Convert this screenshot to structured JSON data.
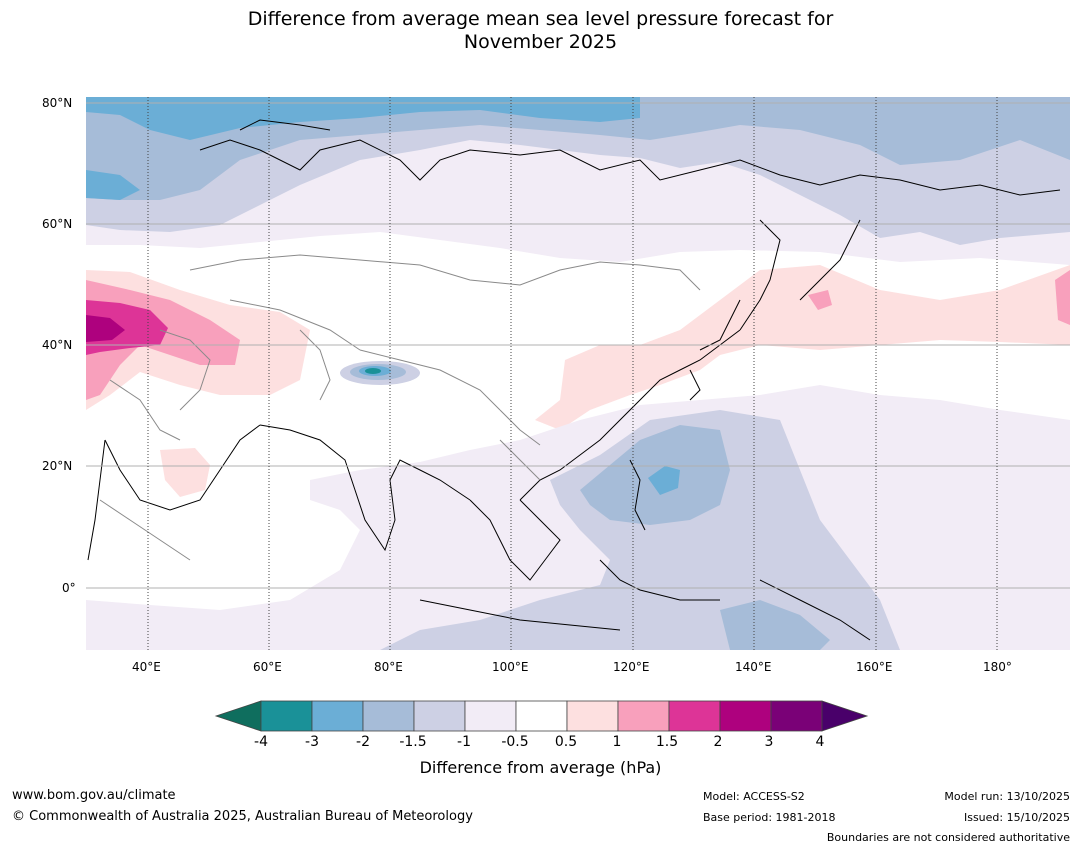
{
  "title_line1": "Difference from average mean sea level pressure forecast for",
  "title_line2": "November 2025",
  "lat_labels": [
    "80°N",
    "60°N",
    "40°N",
    "20°N",
    "0°"
  ],
  "lon_labels": [
    "40°E",
    "60°E",
    "80°E",
    "100°E",
    "120°E",
    "140°E",
    "160°E",
    "180°"
  ],
  "colorbar": {
    "ticks": [
      "-4",
      "-3",
      "-2",
      "-1.5",
      "-1",
      "-0.5",
      "0.5",
      "1",
      "1.5",
      "2",
      "3",
      "4"
    ],
    "colors": [
      "#1a9198",
      "#6baed6",
      "#a6bcd8",
      "#cdd0e4",
      "#f2ecf6",
      "#ffffff",
      "#fde0e0",
      "#f8a0bc",
      "#dd3497",
      "#ae017e",
      "#7a0177"
    ],
    "under_color": "#0f6e5e",
    "over_color": "#49006a",
    "label": "Difference from average (hPa)"
  },
  "footer": {
    "website": "www.bom.gov.au/climate",
    "copyright": "© Commonwealth of Australia 2025, Australian Bureau of Meteorology",
    "model": "Model: ACCESS-S2",
    "base_period": "Base period: 1981-2018",
    "model_run": "Model run: 13/10/2025",
    "issued": "Issued: 15/10/2025",
    "boundaries_note": "Boundaries are not considered authoritative"
  }
}
